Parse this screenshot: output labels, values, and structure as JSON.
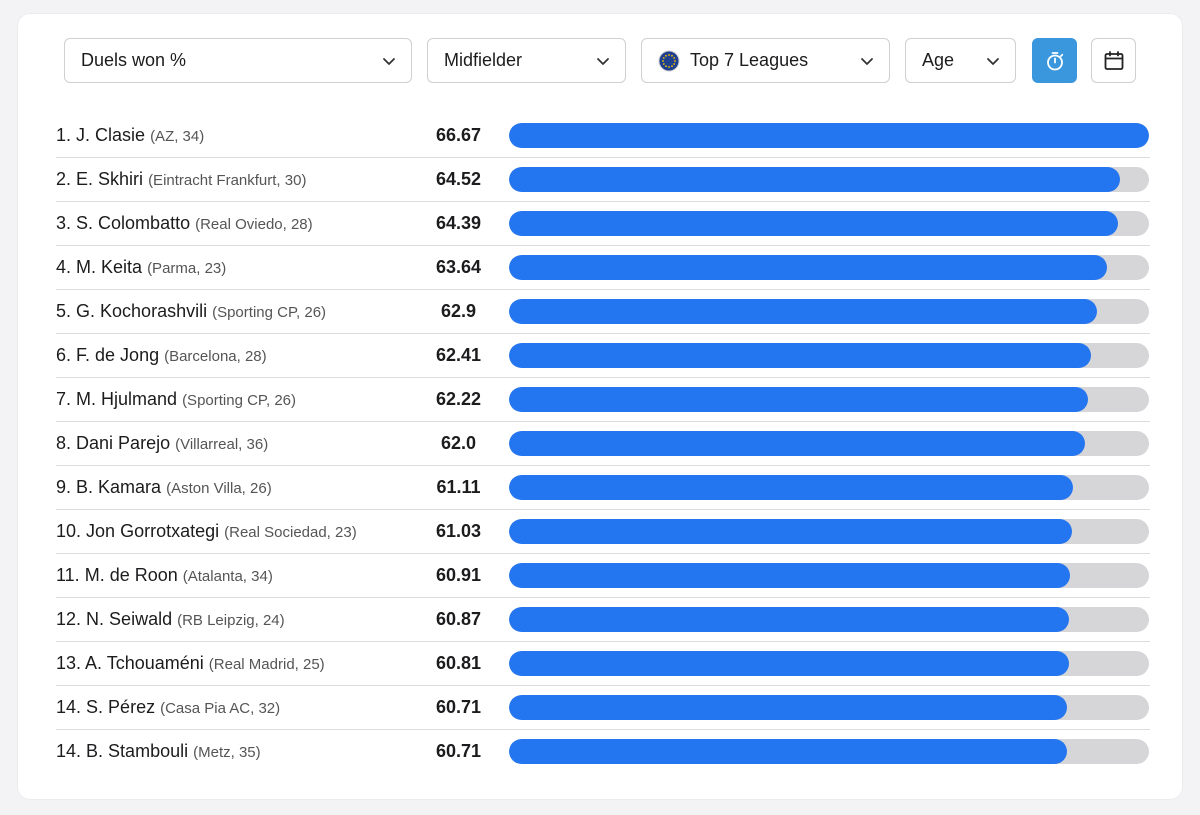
{
  "filters": {
    "metric": "Duels won %",
    "position": "Midfielder",
    "league": "Top 7 Leagues",
    "sort": "Age"
  },
  "buttons": {
    "timer_icon": "stopwatch-icon",
    "calendar_icon": "calendar-icon"
  },
  "colors": {
    "bar": "#2376f0",
    "track": "#d6d6d9",
    "active_button": "#3a97dd"
  },
  "scale_max": 66.67,
  "players": [
    {
      "rank": "1.",
      "name": "J. Clasie",
      "meta": "(AZ, 34)",
      "value": "66.67"
    },
    {
      "rank": "2.",
      "name": "E. Skhiri",
      "meta": "(Eintracht Frankfurt, 30)",
      "value": "64.52"
    },
    {
      "rank": "3.",
      "name": "S. Colombatto",
      "meta": "(Real Oviedo, 28)",
      "value": "64.39"
    },
    {
      "rank": "4.",
      "name": "M. Keita",
      "meta": "(Parma, 23)",
      "value": "63.64"
    },
    {
      "rank": "5.",
      "name": "G. Kochorashvili",
      "meta": "(Sporting CP, 26)",
      "value": "62.9"
    },
    {
      "rank": "6.",
      "name": "F. de Jong",
      "meta": "(Barcelona, 28)",
      "value": "62.41"
    },
    {
      "rank": "7.",
      "name": "M. Hjulmand",
      "meta": "(Sporting CP, 26)",
      "value": "62.22"
    },
    {
      "rank": "8.",
      "name": "Dani Parejo",
      "meta": "(Villarreal, 36)",
      "value": "62.0"
    },
    {
      "rank": "9.",
      "name": "B. Kamara",
      "meta": "(Aston Villa, 26)",
      "value": "61.11"
    },
    {
      "rank": "10.",
      "name": "Jon Gorrotxategi",
      "meta": "(Real Sociedad, 23)",
      "value": "61.03"
    },
    {
      "rank": "11.",
      "name": "M. de Roon",
      "meta": "(Atalanta, 34)",
      "value": "60.91"
    },
    {
      "rank": "12.",
      "name": "N. Seiwald",
      "meta": "(RB Leipzig, 24)",
      "value": "60.87"
    },
    {
      "rank": "13.",
      "name": "A. Tchouaméni",
      "meta": "(Real Madrid, 25)",
      "value": "60.81"
    },
    {
      "rank": "14.",
      "name": "S. Pérez",
      "meta": "(Casa Pia AC, 32)",
      "value": "60.71"
    },
    {
      "rank": "14.",
      "name": "B. Stambouli",
      "meta": "(Metz, 35)",
      "value": "60.71"
    }
  ]
}
